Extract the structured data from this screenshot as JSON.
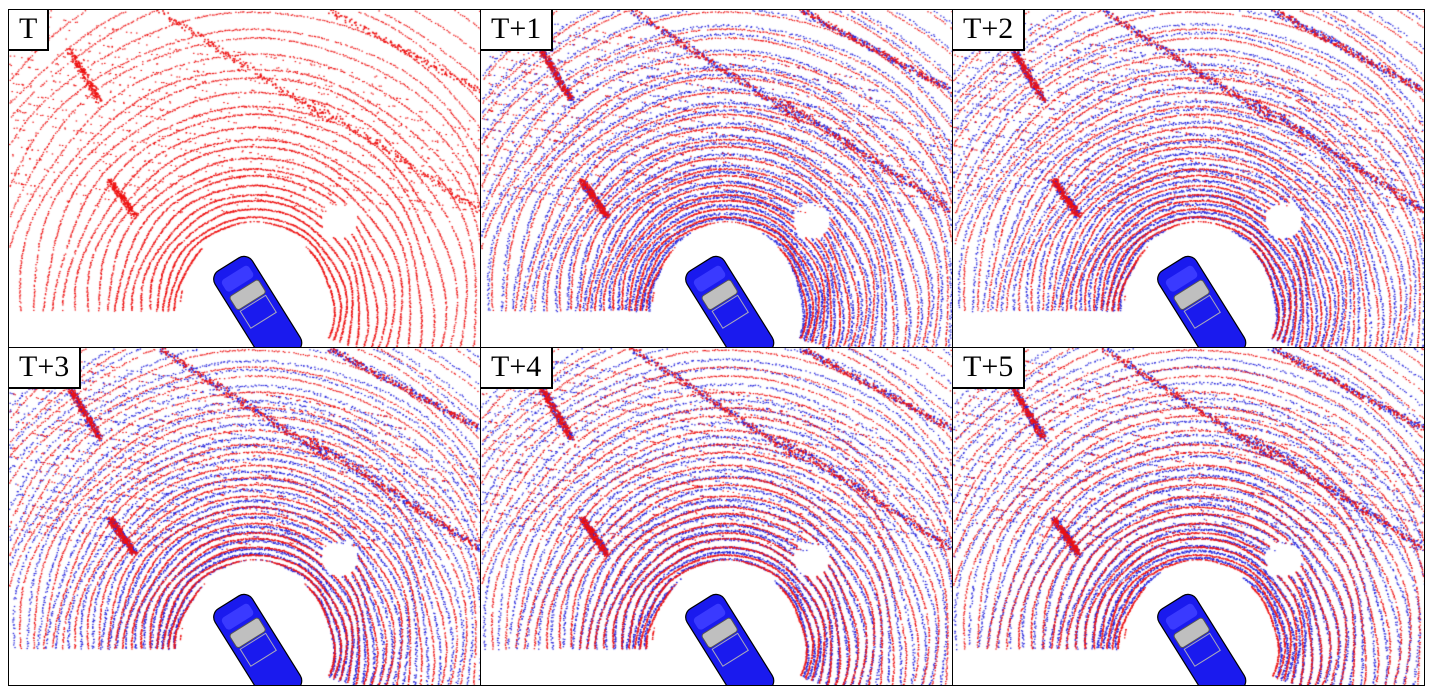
{
  "figure": {
    "frames": [
      {
        "label": "T",
        "show_prediction": false
      },
      {
        "label": "T+1",
        "show_prediction": true
      },
      {
        "label": "T+2",
        "show_prediction": true
      },
      {
        "label": "T+3",
        "show_prediction": true
      },
      {
        "label": "T+4",
        "show_prediction": true
      },
      {
        "label": "T+5",
        "show_prediction": true
      }
    ],
    "colors": {
      "ground_truth_points": "#ee1111",
      "predicted_points": "#2222dd",
      "ego_vehicle": "#1a1aee",
      "background": "#ffffff"
    },
    "icon": "ego-car-icon"
  }
}
